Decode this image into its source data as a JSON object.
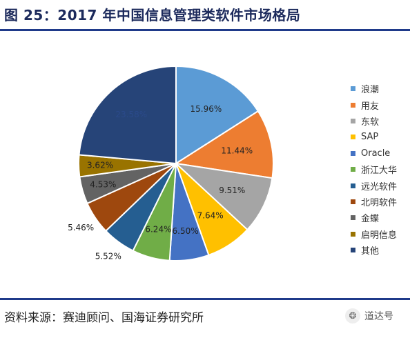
{
  "header": {
    "title": "图 25：2017 年中国信息管理类软件市场格局"
  },
  "footer": {
    "source": "资料来源：赛迪顾问、国海证券研究所"
  },
  "watermark": {
    "text": "道达号",
    "icon": "wechat-logo-icon"
  },
  "chart_data": {
    "type": "pie",
    "title": "",
    "categories": [
      "浪潮",
      "用友",
      "东软",
      "SAP",
      "Oracle",
      "浙江大华",
      "远光软件",
      "北明软件",
      "金蝶",
      "启明信息",
      "其他"
    ],
    "values": [
      15.96,
      11.44,
      9.51,
      7.64,
      6.5,
      6.24,
      5.52,
      5.46,
      4.53,
      3.62,
      23.58
    ],
    "labels": [
      "15.96%",
      "11.44%",
      "9.51%",
      "7.64%",
      "6.50%",
      "6.24%",
      "5.52%",
      "5.46%",
      "4.53%",
      "3.62%",
      "23.58%"
    ],
    "colors": [
      "#5b9bd5",
      "#ed7d31",
      "#a5a5a5",
      "#ffc000",
      "#4472c4",
      "#70ad47",
      "#255e91",
      "#9e480e",
      "#636363",
      "#997300",
      "#264478"
    ],
    "label_colors": [
      "#222222",
      "#222222",
      "#222222",
      "#222222",
      "#222222",
      "#222222",
      "#222222",
      "#222222",
      "#222222",
      "#222222",
      "#2b4a8a"
    ],
    "legend_position": "right"
  }
}
